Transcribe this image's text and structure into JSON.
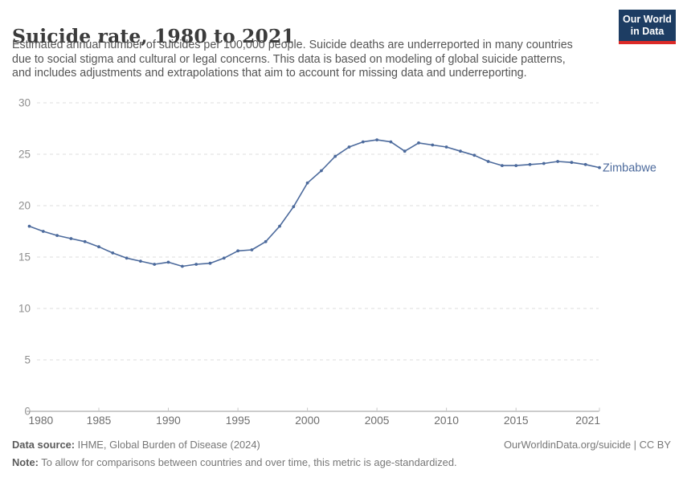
{
  "header": {
    "title": "Suicide rate, 1980 to 2021",
    "subtitle_lines": [
      "Estimated annual number of suicides per 100,000 people. Suicide deaths are underreported in many countries",
      "due to social stigma and cultural or legal concerns. This data is based on modeling of global suicide patterns,",
      "and includes adjustments and extrapolations that aim to account for missing data and underreporting."
    ]
  },
  "logo": {
    "line1": "Our World",
    "line2": "in Data",
    "background": "#1d3d63",
    "stripe": "#dc2a27"
  },
  "chart_data": {
    "type": "line",
    "title": "Suicide rate, 1980 to 2021",
    "xlabel": "",
    "ylabel": "Suicides per 100,000 people",
    "xlim": [
      1980,
      2021
    ],
    "ylim": [
      0,
      30
    ],
    "grid": "horizontal-dashed",
    "x_ticks": [
      1980,
      1985,
      1990,
      1995,
      2000,
      2005,
      2010,
      2015,
      2021
    ],
    "y_ticks": [
      0,
      5,
      10,
      15,
      20,
      25,
      30
    ],
    "end_label": "Zimbabwe",
    "colors": {
      "line": "#4c6a9c",
      "grid": "#dcdcdc",
      "axis": "#9a9a9a",
      "tick": "#c8c8c8"
    },
    "series": [
      {
        "name": "Zimbabwe",
        "color": "#4c6a9c",
        "x": [
          1980,
          1981,
          1982,
          1983,
          1984,
          1985,
          1986,
          1987,
          1988,
          1989,
          1990,
          1991,
          1992,
          1993,
          1994,
          1995,
          1996,
          1997,
          1998,
          1999,
          2000,
          2001,
          2002,
          2003,
          2004,
          2005,
          2006,
          2007,
          2008,
          2009,
          2010,
          2011,
          2012,
          2013,
          2014,
          2015,
          2016,
          2017,
          2018,
          2019,
          2020,
          2021
        ],
        "values": [
          18.0,
          17.5,
          17.1,
          16.8,
          16.5,
          16.0,
          15.4,
          14.9,
          14.6,
          14.3,
          14.5,
          14.1,
          14.3,
          14.4,
          14.9,
          15.6,
          15.7,
          16.5,
          18.0,
          19.9,
          22.2,
          23.4,
          24.8,
          25.7,
          26.2,
          26.4,
          26.2,
          25.3,
          26.1,
          25.9,
          25.7,
          25.3,
          24.9,
          24.3,
          23.9,
          23.9,
          24.0,
          24.1,
          24.3,
          24.2,
          24.0,
          23.7
        ]
      }
    ]
  },
  "footer": {
    "source_label": "Data source:",
    "source_text": " IHME, Global Burden of Disease (2024)",
    "link_text": "OurWorldinData.org/suicide | CC BY",
    "note_label": "Note:",
    "note_text": " To allow for comparisons between countries and over time, this metric is age-standardized."
  }
}
